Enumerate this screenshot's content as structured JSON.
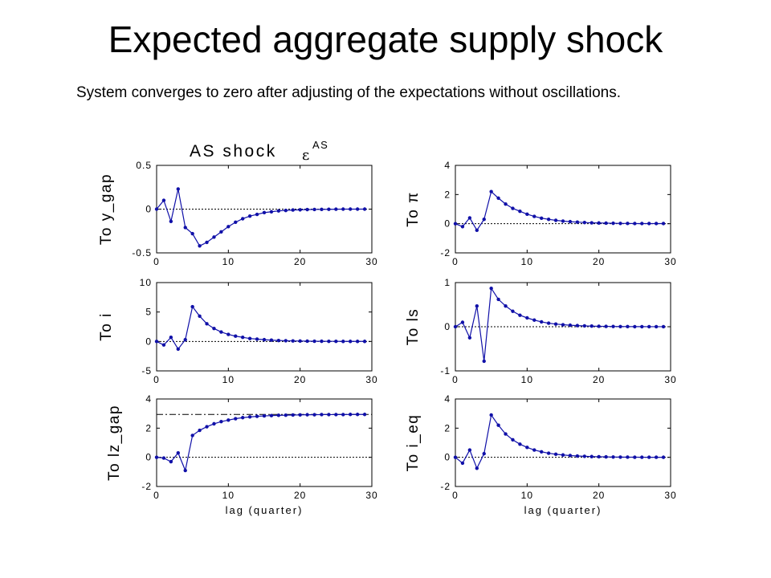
{
  "slide": {
    "title": "Expected aggregate supply shock",
    "subtitle": "System converges to zero after adjusting of the expectations without oscillations."
  },
  "figure": {
    "title_text": "AS shock",
    "title_symbol": "ε",
    "title_superscript": "AS"
  },
  "colors": {
    "series": "#1010a8",
    "axes": "#000000",
    "reference": "#000000"
  },
  "chart_data": [
    {
      "type": "line",
      "ylabel": "To  y_gap",
      "xlabel": "",
      "xlim": [
        0,
        30
      ],
      "ylim": [
        -0.5,
        0.5
      ],
      "xticks": [
        "0",
        "10",
        "20",
        "30"
      ],
      "yticks": [
        "-0.5",
        "0",
        "0.5"
      ],
      "x": [
        0,
        1,
        2,
        3,
        4,
        5,
        6,
        7,
        8,
        9,
        10,
        11,
        12,
        13,
        14,
        15,
        16,
        17,
        18,
        19,
        20,
        21,
        22,
        23,
        24,
        25,
        26,
        27,
        28,
        29
      ],
      "series": [
        {
          "values": [
            0.0,
            0.1,
            -0.14,
            0.23,
            -0.21,
            -0.28,
            -0.42,
            -0.38,
            -0.32,
            -0.26,
            -0.2,
            -0.15,
            -0.11,
            -0.08,
            -0.06,
            -0.04,
            -0.03,
            -0.02,
            -0.015,
            -0.01,
            -0.008,
            -0.005,
            -0.004,
            -0.003,
            -0.002,
            -0.001,
            0,
            0,
            0,
            0
          ]
        }
      ],
      "reference_lines": [
        {
          "y": 0,
          "style": "dotted"
        }
      ]
    },
    {
      "type": "line",
      "ylabel": "To  π",
      "xlabel": "",
      "xlim": [
        0,
        30
      ],
      "ylim": [
        -2,
        4
      ],
      "xticks": [
        "0",
        "10",
        "20",
        "30"
      ],
      "yticks": [
        "-2",
        "0",
        "2",
        "4"
      ],
      "x": [
        0,
        1,
        2,
        3,
        4,
        5,
        6,
        7,
        8,
        9,
        10,
        11,
        12,
        13,
        14,
        15,
        16,
        17,
        18,
        19,
        20,
        21,
        22,
        23,
        24,
        25,
        26,
        27,
        28,
        29
      ],
      "series": [
        {
          "values": [
            0.0,
            -0.2,
            0.4,
            -0.45,
            0.3,
            2.2,
            1.75,
            1.35,
            1.05,
            0.85,
            0.65,
            0.5,
            0.38,
            0.3,
            0.23,
            0.18,
            0.14,
            0.11,
            0.08,
            0.06,
            0.05,
            0.04,
            0.03,
            0.02,
            0.02,
            0.01,
            0.01,
            0.01,
            0.01,
            0.01
          ]
        }
      ],
      "reference_lines": [
        {
          "y": 0,
          "style": "dotted"
        }
      ]
    },
    {
      "type": "line",
      "ylabel": "To  i",
      "xlabel": "",
      "xlim": [
        0,
        30
      ],
      "ylim": [
        -5,
        10
      ],
      "xticks": [
        "0",
        "10",
        "20",
        "30"
      ],
      "yticks": [
        "-5",
        "0",
        "5",
        "10"
      ],
      "x": [
        0,
        1,
        2,
        3,
        4,
        5,
        6,
        7,
        8,
        9,
        10,
        11,
        12,
        13,
        14,
        15,
        16,
        17,
        18,
        19,
        20,
        21,
        22,
        23,
        24,
        25,
        26,
        27,
        28,
        29
      ],
      "series": [
        {
          "values": [
            0.0,
            -0.6,
            0.7,
            -1.3,
            0.3,
            5.9,
            4.3,
            3.0,
            2.2,
            1.6,
            1.2,
            0.9,
            0.7,
            0.5,
            0.4,
            0.3,
            0.22,
            0.16,
            0.12,
            0.09,
            0.07,
            0.05,
            0.04,
            0.03,
            0.02,
            0.02,
            0.01,
            0.01,
            0.01,
            0.01
          ]
        }
      ],
      "reference_lines": [
        {
          "y": 0,
          "style": "dotted"
        }
      ]
    },
    {
      "type": "line",
      "ylabel": "To  ls",
      "xlabel": "",
      "xlim": [
        0,
        30
      ],
      "ylim": [
        -1,
        1
      ],
      "xticks": [
        "0",
        "10",
        "20",
        "30"
      ],
      "yticks": [
        "-1",
        "0",
        "1"
      ],
      "x": [
        0,
        1,
        2,
        3,
        4,
        5,
        6,
        7,
        8,
        9,
        10,
        11,
        12,
        13,
        14,
        15,
        16,
        17,
        18,
        19,
        20,
        21,
        22,
        23,
        24,
        25,
        26,
        27,
        28,
        29
      ],
      "series": [
        {
          "values": [
            0.0,
            0.1,
            -0.25,
            0.47,
            -0.78,
            0.87,
            0.62,
            0.47,
            0.35,
            0.26,
            0.2,
            0.15,
            0.11,
            0.08,
            0.06,
            0.045,
            0.034,
            0.025,
            0.019,
            0.014,
            0.01,
            0.008,
            0.006,
            0.004,
            0.003,
            0.002,
            0.002,
            0.001,
            0.001,
            0.001
          ]
        }
      ],
      "reference_lines": [
        {
          "y": 0,
          "style": "dotted"
        }
      ]
    },
    {
      "type": "line",
      "ylabel": "To  lz_gap",
      "xlabel": "lag (quarter)",
      "xlim": [
        0,
        30
      ],
      "ylim": [
        -2,
        4
      ],
      "xticks": [
        "0",
        "10",
        "20",
        "30"
      ],
      "yticks": [
        "-2",
        "0",
        "2",
        "4"
      ],
      "x": [
        0,
        1,
        2,
        3,
        4,
        5,
        6,
        7,
        8,
        9,
        10,
        11,
        12,
        13,
        14,
        15,
        16,
        17,
        18,
        19,
        20,
        21,
        22,
        23,
        24,
        25,
        26,
        27,
        28,
        29
      ],
      "series": [
        {
          "values": [
            0.0,
            -0.05,
            -0.3,
            0.3,
            -0.9,
            1.5,
            1.85,
            2.1,
            2.3,
            2.45,
            2.55,
            2.65,
            2.72,
            2.77,
            2.81,
            2.84,
            2.86,
            2.88,
            2.89,
            2.9,
            2.91,
            2.92,
            2.92,
            2.93,
            2.93,
            2.93,
            2.93,
            2.94,
            2.94,
            2.94
          ]
        }
      ],
      "reference_lines": [
        {
          "y": 0,
          "style": "dotted"
        },
        {
          "y": 2.94,
          "style": "dashdot"
        }
      ]
    },
    {
      "type": "line",
      "ylabel": "To  i_eq",
      "xlabel": "lag (quarter)",
      "xlim": [
        0,
        30
      ],
      "ylim": [
        -2,
        4
      ],
      "xticks": [
        "0",
        "10",
        "20",
        "30"
      ],
      "yticks": [
        "-2",
        "0",
        "2",
        "4"
      ],
      "x": [
        0,
        1,
        2,
        3,
        4,
        5,
        6,
        7,
        8,
        9,
        10,
        11,
        12,
        13,
        14,
        15,
        16,
        17,
        18,
        19,
        20,
        21,
        22,
        23,
        24,
        25,
        26,
        27,
        28,
        29
      ],
      "series": [
        {
          "values": [
            0.0,
            -0.4,
            0.5,
            -0.75,
            0.25,
            2.9,
            2.2,
            1.6,
            1.2,
            0.9,
            0.68,
            0.5,
            0.38,
            0.28,
            0.21,
            0.16,
            0.12,
            0.09,
            0.07,
            0.05,
            0.04,
            0.03,
            0.02,
            0.015,
            0.01,
            0.008,
            0.006,
            0.004,
            0.003,
            0.002
          ]
        }
      ],
      "reference_lines": [
        {
          "y": 0,
          "style": "dotted"
        }
      ]
    }
  ]
}
